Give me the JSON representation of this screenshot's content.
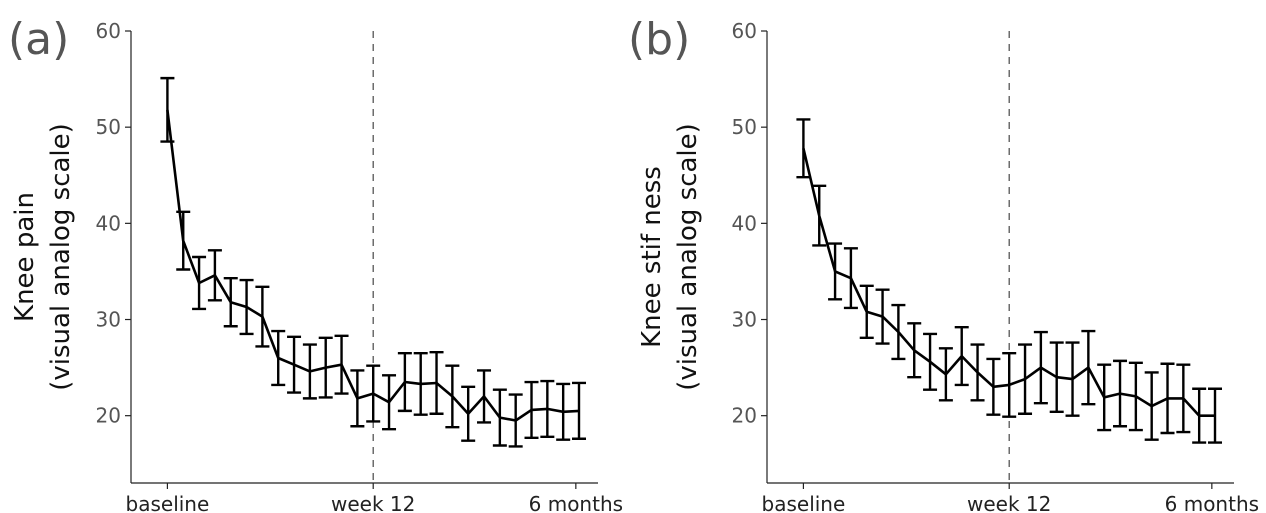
{
  "chart_data": [
    {
      "type": "line",
      "panel_label": "(a)",
      "ylabel_lines": [
        "Knee pain",
        "(visual analog scale)"
      ],
      "xlabel": "",
      "ylim": [
        13,
        60
      ],
      "yticks": [
        20,
        30,
        40,
        50,
        60
      ],
      "xlim": [
        -2.3,
        27.2
      ],
      "xticks": [
        {
          "pos": 0,
          "label": "baseline"
        },
        {
          "pos": 13,
          "label": "week 12"
        },
        {
          "pos": 25.8,
          "label": "6 months"
        }
      ],
      "reference_line_x": 13,
      "grid": false,
      "series": [
        {
          "x": [
            0,
            1,
            2,
            3,
            4,
            5,
            6,
            7,
            8,
            9,
            10,
            11,
            12,
            13,
            14,
            15,
            16,
            17,
            18,
            19,
            20,
            21,
            22,
            23,
            24,
            25,
            26
          ],
          "y": [
            51.8,
            38.2,
            33.8,
            34.6,
            31.8,
            31.3,
            30.3,
            26.0,
            25.3,
            24.6,
            25.0,
            25.3,
            21.8,
            22.3,
            21.4,
            23.5,
            23.3,
            23.4,
            22.0,
            20.2,
            22.0,
            19.8,
            19.5,
            20.6,
            20.7,
            20.4,
            20.5
          ],
          "err": [
            3.3,
            3.0,
            2.7,
            2.6,
            2.5,
            2.8,
            3.1,
            2.8,
            2.9,
            2.8,
            3.1,
            3.0,
            2.9,
            2.9,
            2.8,
            3.0,
            3.2,
            3.2,
            3.2,
            2.8,
            2.7,
            2.9,
            2.7,
            2.9,
            2.9,
            2.9,
            2.9
          ]
        }
      ]
    },
    {
      "type": "line",
      "panel_label": "(b)",
      "ylabel_lines": [
        "Knee stif ness",
        "(visual analog scale)"
      ],
      "xlabel": "",
      "ylim": [
        13,
        60
      ],
      "yticks": [
        20,
        30,
        40,
        50,
        60
      ],
      "xlim": [
        -2.3,
        27.2
      ],
      "xticks": [
        {
          "pos": 0,
          "label": "baseline"
        },
        {
          "pos": 13,
          "label": "week 12"
        },
        {
          "pos": 25.8,
          "label": "6 months"
        }
      ],
      "reference_line_x": 13,
      "grid": false,
      "series": [
        {
          "x": [
            0,
            1,
            2,
            3,
            4,
            5,
            6,
            7,
            8,
            9,
            10,
            11,
            12,
            13,
            14,
            15,
            16,
            17,
            18,
            19,
            20,
            21,
            22,
            23,
            24,
            25,
            26
          ],
          "y": [
            47.8,
            40.8,
            35.0,
            34.3,
            30.8,
            30.3,
            28.7,
            26.8,
            25.6,
            24.3,
            26.2,
            24.5,
            23.0,
            23.2,
            23.8,
            25.0,
            24.0,
            23.8,
            25.0,
            21.9,
            22.3,
            22.0,
            21.0,
            21.8,
            21.8,
            20.0,
            20.0
          ],
          "err": [
            3.0,
            3.1,
            2.9,
            3.1,
            2.7,
            2.8,
            2.8,
            2.8,
            2.9,
            2.7,
            3.0,
            2.9,
            2.9,
            3.3,
            3.6,
            3.7,
            3.6,
            3.8,
            3.8,
            3.4,
            3.4,
            3.5,
            3.5,
            3.6,
            3.5,
            2.8,
            2.8
          ]
        }
      ]
    }
  ]
}
